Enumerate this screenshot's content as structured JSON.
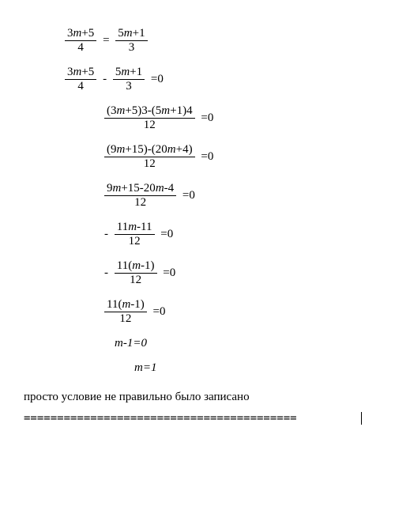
{
  "equations": {
    "eq1_num1": "3m+5",
    "eq1_den1": "4",
    "eq1_op": "=",
    "eq1_num2": "5m+1",
    "eq1_den2": "3",
    "eq2_num1": "3m+5",
    "eq2_den1": "4",
    "eq2_minus": "-",
    "eq2_num2": "5m+1",
    "eq2_den2": "3",
    "eq2_tail": "=0",
    "eq3_num": "(3m+5)3-(5m+1)4",
    "eq3_den": "12",
    "eq3_tail": "=0",
    "eq4_num": "(9m+15)-(20m+4)",
    "eq4_den": "12",
    "eq4_tail": "=0",
    "eq5_num": "9m+15-20m-4",
    "eq5_den": "12",
    "eq5_tail": "=0",
    "eq6_pre": "-",
    "eq6_num": "11m-11",
    "eq6_den": "12",
    "eq6_tail": "=0",
    "eq7_pre": "-",
    "eq7_num": "11(m-1)",
    "eq7_den": "12",
    "eq7_tail": "=0",
    "eq8_num": "11(m-1)",
    "eq8_den": "12",
    "eq8_tail": "=0",
    "eq9": "m-1=0",
    "eq10": "m=1"
  },
  "note": "просто условие не правильно было записано",
  "separator": "========================================="
}
